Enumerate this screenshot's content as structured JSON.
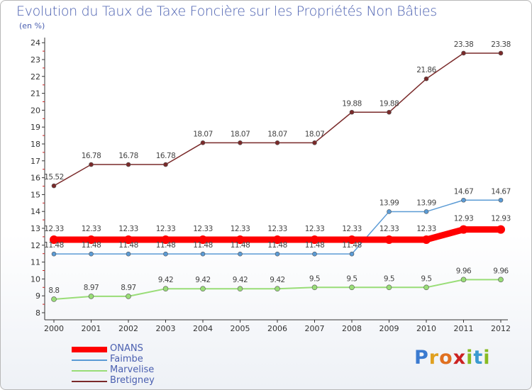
{
  "chart_data": {
    "type": "line",
    "title": "Evolution du Taux de Taxe Foncière sur les Propriétés Non Bâties",
    "unit_label": "(en %)",
    "categories": [
      "2000",
      "2001",
      "2002",
      "2003",
      "2004",
      "2005",
      "2006",
      "2007",
      "2008",
      "2009",
      "2010",
      "2011",
      "2012"
    ],
    "ylim": [
      8,
      24
    ],
    "yticks": [
      8,
      9,
      10,
      11,
      12,
      13,
      14,
      15,
      16,
      17,
      18,
      19,
      20,
      21,
      22,
      23,
      24
    ],
    "grid": false,
    "legend_position": "bottom-left",
    "series": [
      {
        "name": "ONANS",
        "color": "#ff0000",
        "values": [
          12.33,
          12.33,
          12.33,
          12.33,
          12.33,
          12.33,
          12.33,
          12.33,
          12.33,
          12.33,
          12.33,
          12.93,
          12.93
        ],
        "labels": [
          "12.33",
          "12.33",
          "12.33",
          "12.33",
          "12.33",
          "12.33",
          "12.33",
          "12.33",
          "12.33",
          "12.33",
          "12.33",
          "12.93",
          "12.93"
        ]
      },
      {
        "name": "Faimbe",
        "color": "#5b9bd5",
        "values": [
          11.48,
          11.48,
          11.48,
          11.48,
          11.48,
          11.48,
          11.48,
          11.48,
          11.48,
          13.99,
          13.99,
          14.67,
          14.67
        ],
        "labels": [
          "11.48",
          "11.48",
          "11.48",
          "11.48",
          "11.48",
          "11.48",
          "11.48",
          "11.48",
          "11.48",
          "13.99",
          "13.99",
          "14.67",
          "14.67"
        ]
      },
      {
        "name": "Marvelise",
        "color": "#99dd77",
        "values": [
          8.8,
          8.97,
          8.97,
          9.42,
          9.42,
          9.42,
          9.42,
          9.5,
          9.5,
          9.5,
          9.5,
          9.96,
          9.96
        ],
        "labels": [
          "8.8",
          "8.97",
          "8.97",
          "9.42",
          "9.42",
          "9.42",
          "9.42",
          "9.5",
          "9.5",
          "9.5",
          "9.5",
          "9.96",
          "9.96"
        ]
      },
      {
        "name": "Bretigney",
        "color": "#7a2a2a",
        "values": [
          15.52,
          16.78,
          16.78,
          16.78,
          18.07,
          18.07,
          18.07,
          18.07,
          19.88,
          19.88,
          21.86,
          23.38,
          23.38
        ],
        "labels": [
          "15.52",
          "16.78",
          "16.78",
          "16.78",
          "18.07",
          "18.07",
          "18.07",
          "18.07",
          "19.88",
          "19.88",
          "21.86",
          "23.38",
          "23.38"
        ]
      }
    ]
  },
  "logo": {
    "letters": [
      "P",
      "r",
      "o",
      "x",
      "i",
      "t",
      "i"
    ]
  },
  "colors": {
    "text": "#4a5fb0",
    "axis": "#333333",
    "tick_marker": "#cc2222"
  }
}
